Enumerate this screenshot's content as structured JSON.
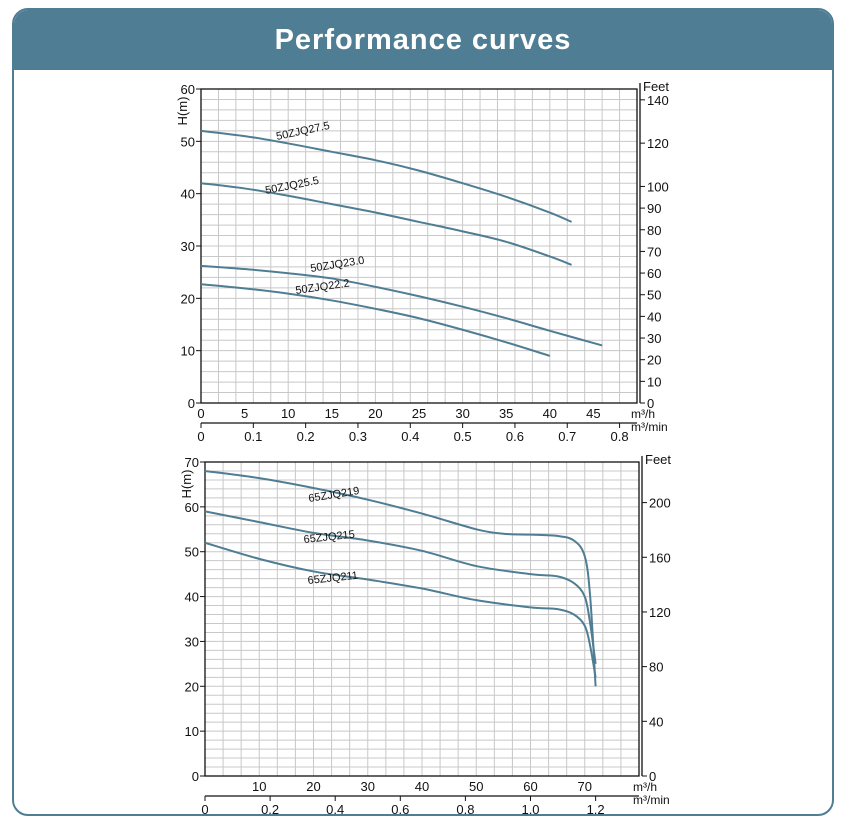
{
  "header": {
    "title": "Performance curves",
    "bg": "#4f7d93"
  },
  "colors": {
    "curve": "#4f7d93",
    "grid": "#c8c8c8",
    "axis": "#111111"
  },
  "chart_data": [
    {
      "type": "line",
      "y_label": "H(m)",
      "y_right_label": "Feet",
      "x_label": "m³/h",
      "x2_label": "m³/min",
      "ylim": [
        0,
        60
      ],
      "xlim": [
        0,
        50
      ],
      "y_ticks": [
        0,
        10,
        20,
        30,
        40,
        50,
        60
      ],
      "y_right_ticks": [
        0,
        10,
        20,
        30,
        40,
        50,
        60,
        70,
        80,
        90,
        100,
        120,
        140
      ],
      "x_ticks": [
        5,
        10,
        15,
        20,
        25,
        30,
        35,
        40,
        45
      ],
      "x2_ticks": [
        0,
        0.1,
        0.2,
        0.3,
        0.4,
        0.5,
        0.6,
        0.7,
        0.8
      ],
      "grid": true,
      "series": [
        {
          "name": "50ZJQ27.5",
          "x": [
            0,
            5,
            10,
            15,
            20,
            25,
            30,
            35,
            40,
            42.5
          ],
          "y": [
            52,
            51,
            49.6,
            48,
            46.4,
            44.4,
            42,
            39.4,
            36.4,
            34.6
          ]
        },
        {
          "name": "50ZJQ25.5",
          "x": [
            0,
            5,
            10,
            15,
            20,
            25,
            30,
            35,
            40,
            42.5
          ],
          "y": [
            42,
            41,
            39.6,
            38,
            36.4,
            34.6,
            32.8,
            30.8,
            28,
            26.4
          ]
        },
        {
          "name": "50ZJQ23.0",
          "x": [
            0,
            5,
            10,
            15,
            20,
            25,
            30,
            35,
            40,
            46
          ],
          "y": [
            26.2,
            25.6,
            24.8,
            23.8,
            22.2,
            20.4,
            18.4,
            16.2,
            13.8,
            11
          ]
        },
        {
          "name": "50ZJQ22.2",
          "x": [
            0,
            5,
            10,
            15,
            20,
            25,
            30,
            35,
            40
          ],
          "y": [
            22.7,
            21.9,
            20.9,
            19.6,
            18,
            16.2,
            14,
            11.6,
            9
          ]
        }
      ]
    },
    {
      "type": "line",
      "y_label": "H(m)",
      "y_right_label": "Feet",
      "x_label": "m³/h",
      "x2_label": "m³/min",
      "ylim": [
        0,
        70
      ],
      "xlim": [
        0,
        80
      ],
      "y_ticks": [
        0,
        10,
        20,
        30,
        40,
        50,
        60,
        70
      ],
      "y_right_ticks": [
        0,
        40,
        80,
        120,
        160,
        200
      ],
      "x_ticks": [
        10,
        20,
        30,
        40,
        50,
        60,
        70
      ],
      "x2_ticks": [
        "0",
        "0.2",
        "0.4",
        "0.6",
        "0.8",
        "1.0",
        "1.2"
      ],
      "grid": true,
      "series": [
        {
          "name": "65ZJQ219",
          "x": [
            0,
            10,
            20,
            30,
            40,
            50,
            55,
            60,
            65,
            68,
            70,
            71,
            72
          ],
          "y": [
            68,
            66.4,
            64.2,
            61.6,
            58.5,
            55,
            54,
            53.8,
            53.5,
            52.5,
            49,
            40,
            20
          ]
        },
        {
          "name": "65ZJQ215",
          "x": [
            0,
            10,
            20,
            30,
            40,
            50,
            60,
            65,
            68,
            70,
            71,
            72
          ],
          "y": [
            59,
            56.6,
            54.2,
            52.5,
            50.2,
            46.8,
            45,
            44.5,
            43,
            40,
            34,
            25
          ]
        },
        {
          "name": "65ZJQ211",
          "x": [
            0,
            10,
            20,
            30,
            40,
            50,
            60,
            65,
            68,
            70,
            71,
            72
          ],
          "y": [
            52,
            48.4,
            45.6,
            43.8,
            41.8,
            39.2,
            37.6,
            37.2,
            36,
            33.5,
            29,
            22
          ]
        }
      ]
    }
  ]
}
